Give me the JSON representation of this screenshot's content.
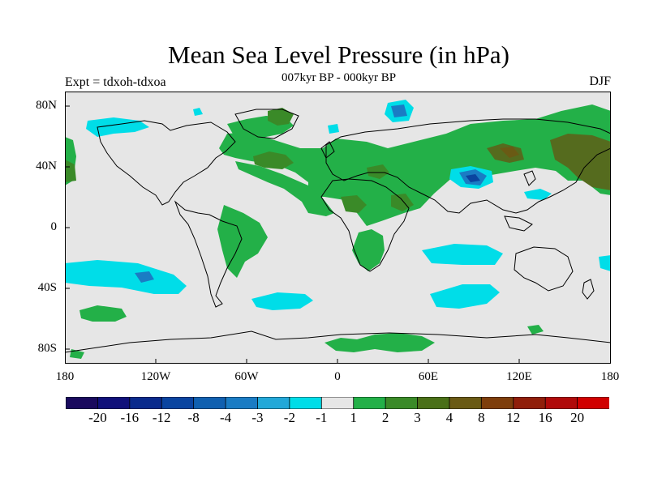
{
  "title": "Mean Sea Level Pressure (in hPa)",
  "subtitle": "007kyr BP - 000kyr BP",
  "left_label": "Expt = tdxoh-tdxoa",
  "right_label": "DJF",
  "axes": {
    "lat_ticks": [
      "80N",
      "40N",
      "0",
      "40S",
      "80S"
    ],
    "lon_ticks": [
      "180",
      "120W",
      "60W",
      "0",
      "60E",
      "120E",
      "180"
    ]
  },
  "colorbar": {
    "colors": [
      "#1a0a5e",
      "#10107a",
      "#0a2a8c",
      "#0a44a0",
      "#1060b0",
      "#1a7cc4",
      "#22a8d8",
      "#00dde8",
      "#e6e6e6",
      "#23b048",
      "#3a8a28",
      "#4a7018",
      "#6a5a14",
      "#7e3e0c",
      "#901e0a",
      "#b00a0a",
      "#d00000"
    ],
    "labels": [
      "-20",
      "-16",
      "-12",
      "-8",
      "-4",
      "-3",
      "-2",
      "-1",
      "1",
      "2",
      "3",
      "4",
      "8",
      "12",
      "16",
      "20"
    ]
  },
  "legend_colors": {
    "background": "#e6e6e6",
    "green_light": "#23b048",
    "green_dark": "#3a8a28",
    "olive": "#556b1e",
    "brown": "#6a5a14",
    "cyan": "#00dde8",
    "blue_mid": "#1a7cc4",
    "blue_dark": "#0a44a0"
  }
}
